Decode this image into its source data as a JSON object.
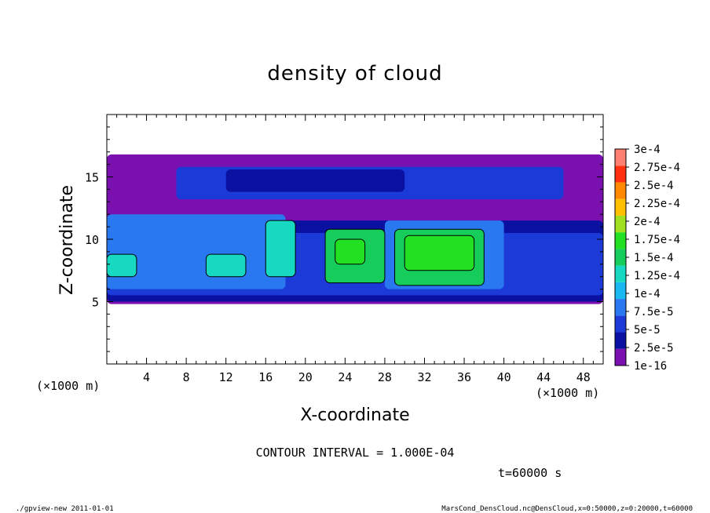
{
  "chart_data": {
    "type": "heatmap",
    "title": "density of cloud",
    "xlabel": "X-coordinate",
    "ylabel": "Z-coordinate",
    "x_unit": "(×1000 m)",
    "x_unit_right": "(×1000 m)",
    "xlim": [
      0,
      50
    ],
    "ylim": [
      0,
      20
    ],
    "xticks": [
      4,
      8,
      12,
      16,
      20,
      24,
      28,
      32,
      36,
      40,
      44,
      48
    ],
    "yticks": [
      5,
      10,
      15
    ],
    "contour_interval_text": "CONTOUR INTERVAL = 1.000E-04",
    "time_text": "t=60000 s",
    "colorbar": {
      "levels": [
        "1e-16",
        "2.5e-5",
        "5e-5",
        "7.5e-5",
        "1e-4",
        "1.25e-4",
        "1.5e-4",
        "1.75e-4",
        "2e-4",
        "2.25e-4",
        "2.5e-4",
        "2.75e-4",
        "3e-4"
      ],
      "colors": [
        "#7a10b0",
        "#0a10a0",
        "#1c3ad8",
        "#2a78f0",
        "#19b8f0",
        "#17d8c0",
        "#16cc5a",
        "#22e022",
        "#a0e020",
        "#ffc000",
        "#ff8800",
        "#ff3010",
        "#ff8070"
      ]
    },
    "regions": [
      {
        "x0": 0,
        "x1": 50,
        "z0": 4.8,
        "z1": 16.8,
        "level": 0
      },
      {
        "x0": 0,
        "x1": 50,
        "z0": 5.0,
        "z1": 11.5,
        "level": 1
      },
      {
        "x0": 7,
        "x1": 46,
        "z0": 13.2,
        "z1": 15.8,
        "level": 2
      },
      {
        "x0": 12,
        "x1": 30,
        "z0": 13.8,
        "z1": 15.6,
        "level": 1
      },
      {
        "x0": 0,
        "x1": 50,
        "z0": 5.5,
        "z1": 10.5,
        "level": 2
      },
      {
        "x0": 0,
        "x1": 18,
        "z0": 6.0,
        "z1": 12.0,
        "level": 3
      },
      {
        "x0": 28,
        "x1": 40,
        "z0": 6.0,
        "z1": 11.5,
        "level": 3
      },
      {
        "x0": 0,
        "x1": 3,
        "z0": 7.0,
        "z1": 8.8,
        "level": 5
      },
      {
        "x0": 10,
        "x1": 14,
        "z0": 7.0,
        "z1": 8.8,
        "level": 5
      },
      {
        "x0": 16,
        "x1": 19,
        "z0": 7.0,
        "z1": 11.5,
        "level": 5
      },
      {
        "x0": 22,
        "x1": 28,
        "z0": 6.5,
        "z1": 10.8,
        "level": 6
      },
      {
        "x0": 29,
        "x1": 38,
        "z0": 6.3,
        "z1": 10.8,
        "level": 6
      },
      {
        "x0": 30,
        "x1": 37,
        "z0": 7.5,
        "z1": 10.3,
        "level": 7
      },
      {
        "x0": 23,
        "x1": 26,
        "z0": 8.0,
        "z1": 10.0,
        "level": 7
      }
    ]
  },
  "footer": {
    "left": "./gpview-new   2011-01-01",
    "right": "MarsCond_DensCloud.nc@DensCloud,x=0:50000,z=0:20000,t=60000"
  }
}
